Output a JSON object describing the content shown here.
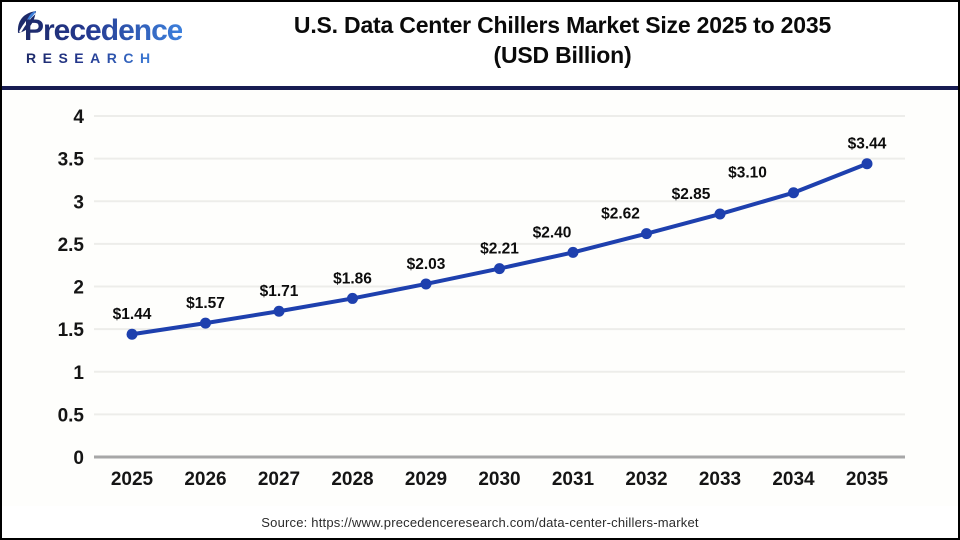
{
  "logo": {
    "name": "Precedence",
    "subtitle": "RESEARCH"
  },
  "header": {
    "title_line1": "U.S. Data Center Chillers Market Size 2025 to 2035",
    "title_line2": "(USD Billion)"
  },
  "source": {
    "text": "Source: https://www.precedenceresearch.com/data-center-chillers-market"
  },
  "colors": {
    "line": "#1e40ae",
    "marker": "#1e40ae",
    "grid": "#ededea",
    "axis": "#a7a7a7",
    "tick_text": "#151515",
    "label_text": "#0d0d0d",
    "divider_navy": "#181c52",
    "logo_navy": "#1d2a69",
    "logo_blue": "#3d80dc"
  },
  "chart_data": {
    "type": "line",
    "title": "U.S. Data Center Chillers Market Size 2025 to 2035 (USD Billion)",
    "categories": [
      "2025",
      "2026",
      "2027",
      "2028",
      "2029",
      "2030",
      "2031",
      "2032",
      "2033",
      "2034",
      "2035"
    ],
    "values": [
      1.44,
      1.57,
      1.71,
      1.86,
      2.03,
      2.21,
      2.4,
      2.62,
      2.85,
      3.1,
      3.44
    ],
    "point_labels": [
      "$1.44",
      "$1.57",
      "$1.71",
      "$1.86",
      "$2.03",
      "$2.21",
      "$2.40",
      "$2.62",
      "$2.85",
      "$3.10",
      "$3.44"
    ],
    "xlabel": "",
    "ylabel": "",
    "ylim": [
      0,
      4
    ],
    "yticks": [
      0,
      0.5,
      1,
      1.5,
      2,
      2.5,
      3,
      3.5,
      4
    ],
    "grid": "horizontal-only",
    "legend": "none",
    "marker": "circle"
  }
}
